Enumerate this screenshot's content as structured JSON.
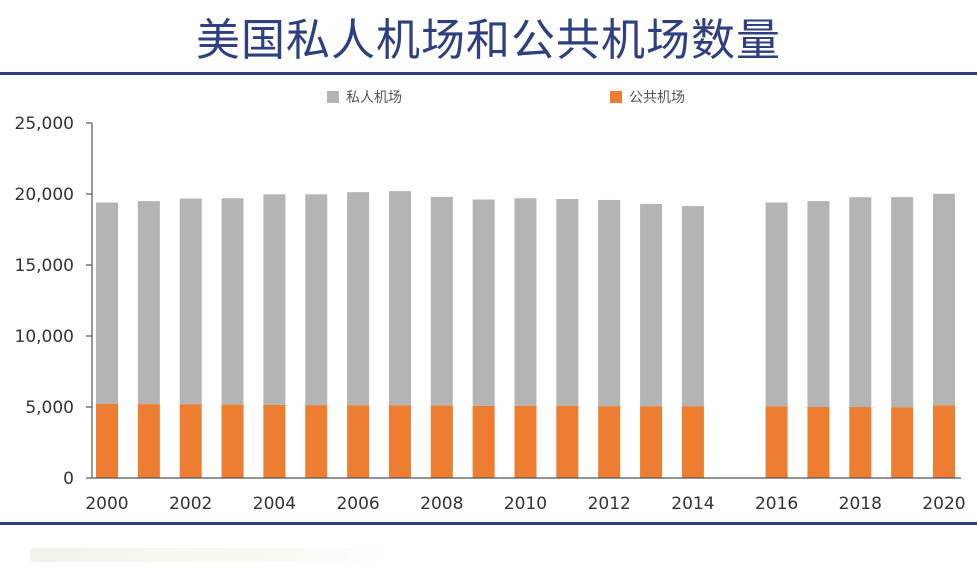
{
  "title": "美国私人机场和公共机场数量",
  "colors": {
    "private": "#b4b4b4",
    "public": "#ed7d31",
    "title": "#2f3f7f",
    "rule": "#2f3f7f"
  },
  "chart_data": {
    "type": "bar",
    "stacked": true,
    "categories": [
      "2000",
      "2001",
      "2002",
      "2003",
      "2004",
      "2005",
      "2006",
      "2007",
      "2008",
      "2009",
      "2010",
      "2011",
      "2012",
      "2013",
      "2014",
      "2015",
      "2016",
      "2017",
      "2018",
      "2019",
      "2020"
    ],
    "x_tick_labels": [
      "2000",
      "2002",
      "2004",
      "2006",
      "2008",
      "2010",
      "2012",
      "2014",
      "2016",
      "2018",
      "2020"
    ],
    "series": [
      {
        "name": "公共机场",
        "color": "#ed7d31",
        "values": [
          5220,
          5200,
          5180,
          5170,
          5150,
          5130,
          5120,
          5110,
          5100,
          5090,
          5080,
          5070,
          5060,
          5050,
          5050,
          null,
          5050,
          5000,
          5000,
          4980,
          5110
        ]
      },
      {
        "name": "私人机场",
        "color": "#b4b4b4",
        "values": [
          14180,
          14300,
          14500,
          14530,
          14830,
          14850,
          15010,
          15090,
          14700,
          14520,
          14620,
          14580,
          14520,
          14250,
          14100,
          null,
          14350,
          14500,
          14770,
          14800,
          14900
        ]
      }
    ],
    "legend": [
      "私人机场",
      "公共机场"
    ],
    "legend_position": "top",
    "ylim": [
      0,
      25000
    ],
    "yticks": [
      0,
      5000,
      10000,
      15000,
      20000,
      25000
    ],
    "ytick_labels": [
      "0",
      "5,000",
      "10,000",
      "15,000",
      "20,000",
      "25,000"
    ],
    "grid": false
  }
}
